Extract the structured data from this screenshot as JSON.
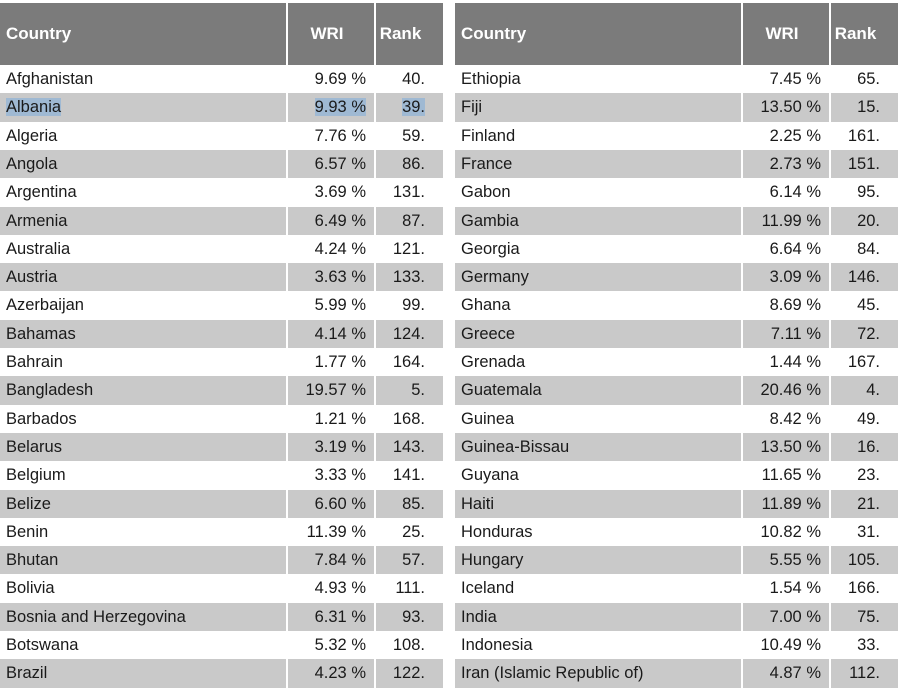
{
  "tables": [
    {
      "header": [
        "Country",
        "WRI",
        "Rank"
      ],
      "rows": [
        [
          "Afghanistan",
          "9.69 %",
          "40."
        ],
        [
          "Albania",
          "9.93 %",
          "39."
        ],
        [
          "Algeria",
          "7.76 %",
          "59."
        ],
        [
          "Angola",
          "6.57 %",
          "86."
        ],
        [
          "Argentina",
          "3.69 %",
          "131."
        ],
        [
          "Armenia",
          "6.49 %",
          "87."
        ],
        [
          "Australia",
          "4.24 %",
          "121."
        ],
        [
          "Austria",
          "3.63 %",
          "133."
        ],
        [
          "Azerbaijan",
          "5.99 %",
          "99."
        ],
        [
          "Bahamas",
          "4.14 %",
          "124."
        ],
        [
          "Bahrain",
          "1.77 %",
          "164."
        ],
        [
          "Bangladesh",
          "19.57 %",
          "5."
        ],
        [
          "Barbados",
          "1.21 %",
          "168."
        ],
        [
          "Belarus",
          "3.19 %",
          "143."
        ],
        [
          "Belgium",
          "3.33 %",
          "141."
        ],
        [
          "Belize",
          "6.60 %",
          "85."
        ],
        [
          "Benin",
          "11.39 %",
          "25."
        ],
        [
          "Bhutan",
          "7.84 %",
          "57."
        ],
        [
          "Bolivia",
          "4.93 %",
          "111."
        ],
        [
          "Bosnia and Herzegovina",
          "6.31 %",
          "93."
        ],
        [
          "Botswana",
          "5.32 %",
          "108."
        ],
        [
          "Brazil",
          "4.23 %",
          "122."
        ]
      ]
    },
    {
      "header": [
        "Country",
        "WRI",
        "Rank"
      ],
      "rows": [
        [
          "Ethiopia",
          "7.45 %",
          "65."
        ],
        [
          "Fiji",
          "13.50 %",
          "15."
        ],
        [
          "Finland",
          "2.25 %",
          "161."
        ],
        [
          "France",
          "2.73 %",
          "151."
        ],
        [
          "Gabon",
          "6.14 %",
          "95."
        ],
        [
          "Gambia",
          "11.99 %",
          "20."
        ],
        [
          "Georgia",
          "6.64 %",
          "84."
        ],
        [
          "Germany",
          "3.09 %",
          "146."
        ],
        [
          "Ghana",
          "8.69 %",
          "45."
        ],
        [
          "Greece",
          "7.11 %",
          "72."
        ],
        [
          "Grenada",
          "1.44 %",
          "167."
        ],
        [
          "Guatemala",
          "20.46 %",
          "4."
        ],
        [
          "Guinea",
          "8.42 %",
          "49."
        ],
        [
          "Guinea-Bissau",
          "13.50 %",
          "16."
        ],
        [
          "Guyana",
          "11.65 %",
          "23."
        ],
        [
          "Haiti",
          "11.89 %",
          "21."
        ],
        [
          "Honduras",
          "10.82 %",
          "31."
        ],
        [
          "Hungary",
          "5.55 %",
          "105."
        ],
        [
          "Iceland",
          "1.54 %",
          "166."
        ],
        [
          "India",
          "7.00 %",
          "75."
        ],
        [
          "Indonesia",
          "10.49 %",
          "33."
        ],
        [
          "Iran (Islamic Republic of)",
          "4.87 %",
          "112."
        ]
      ]
    }
  ]
}
